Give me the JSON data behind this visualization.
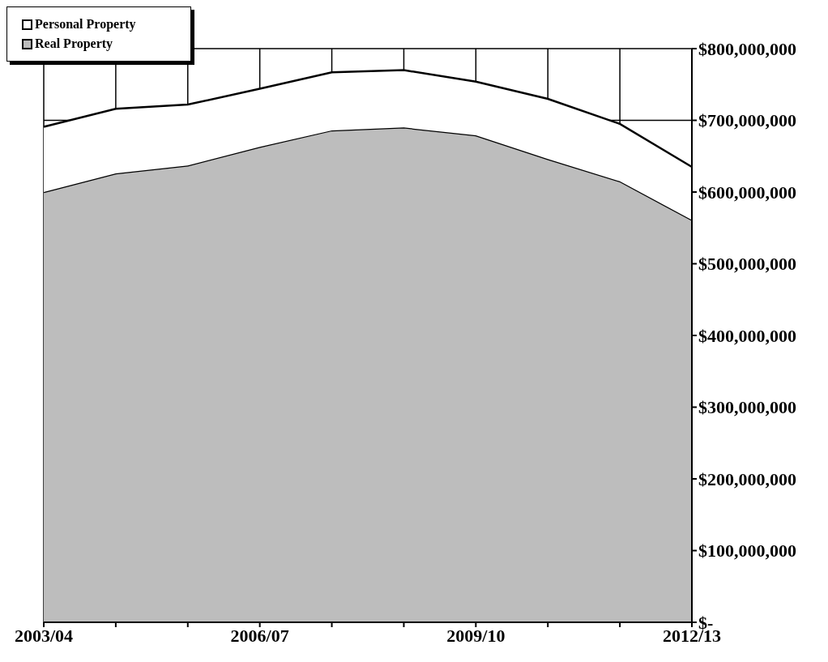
{
  "chart_data": {
    "type": "area",
    "stacked": true,
    "categories": [
      "2003/04",
      null,
      null,
      "2006/07",
      null,
      null,
      "2009/10",
      null,
      null,
      "2012/13"
    ],
    "series": [
      {
        "name": "Real Property",
        "color": "#bdbdbd",
        "values": [
          600000000,
          626000000,
          637000000,
          663000000,
          686000000,
          690000000,
          679000000,
          646000000,
          615000000,
          561000000
        ]
      },
      {
        "name": "Personal Property",
        "color": "#ffffff",
        "values": [
          91000000,
          90000000,
          85000000,
          81000000,
          81000000,
          80000000,
          75000000,
          84000000,
          80000000,
          74000000
        ]
      }
    ],
    "ylim": [
      0,
      800000000
    ],
    "yticks": [
      {
        "value": 0,
        "label": "$-"
      },
      {
        "value": 100000000,
        "label": "$100,000,000"
      },
      {
        "value": 200000000,
        "label": "$200,000,000"
      },
      {
        "value": 300000000,
        "label": "$300,000,000"
      },
      {
        "value": 400000000,
        "label": "$400,000,000"
      },
      {
        "value": 500000000,
        "label": "$500,000,000"
      },
      {
        "value": 600000000,
        "label": "$600,000,000"
      },
      {
        "value": 700000000,
        "label": "$700,000,000"
      },
      {
        "value": 800000000,
        "label": "$800,000,000"
      }
    ],
    "grid": true,
    "legend": "top left"
  }
}
